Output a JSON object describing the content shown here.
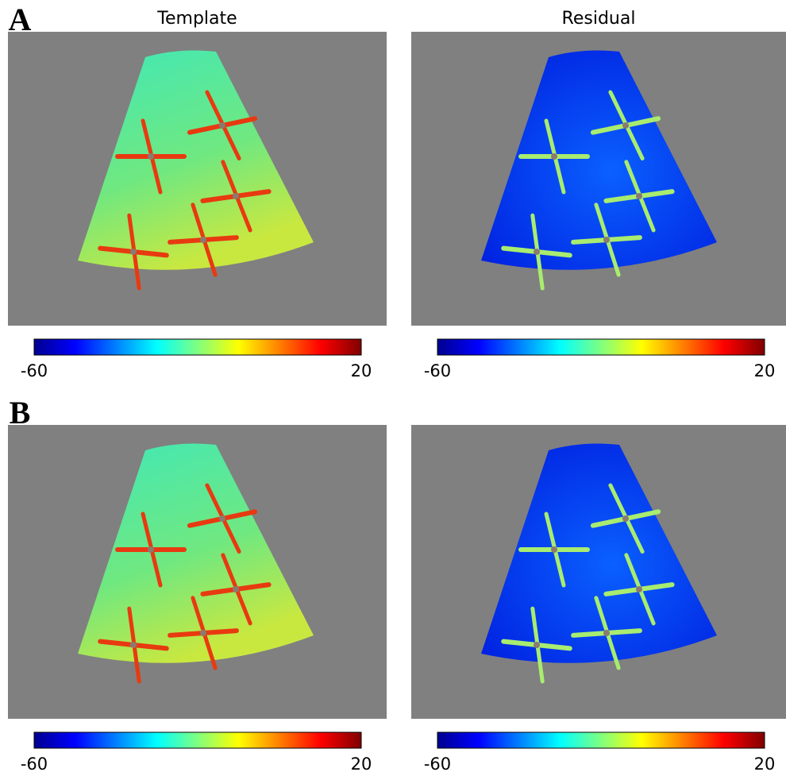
{
  "panels": [
    {
      "label": "A",
      "columns": [
        {
          "title": "Template",
          "colorbar": {
            "min": -60,
            "max": 20
          }
        },
        {
          "title": "Residual",
          "colorbar": {
            "min": -60,
            "max": 20
          }
        }
      ]
    },
    {
      "label": "B",
      "columns": [
        {
          "colorbar": {
            "min": -60,
            "max": 20
          }
        },
        {
          "colorbar": {
            "min": -60,
            "max": 20
          }
        }
      ]
    }
  ]
}
